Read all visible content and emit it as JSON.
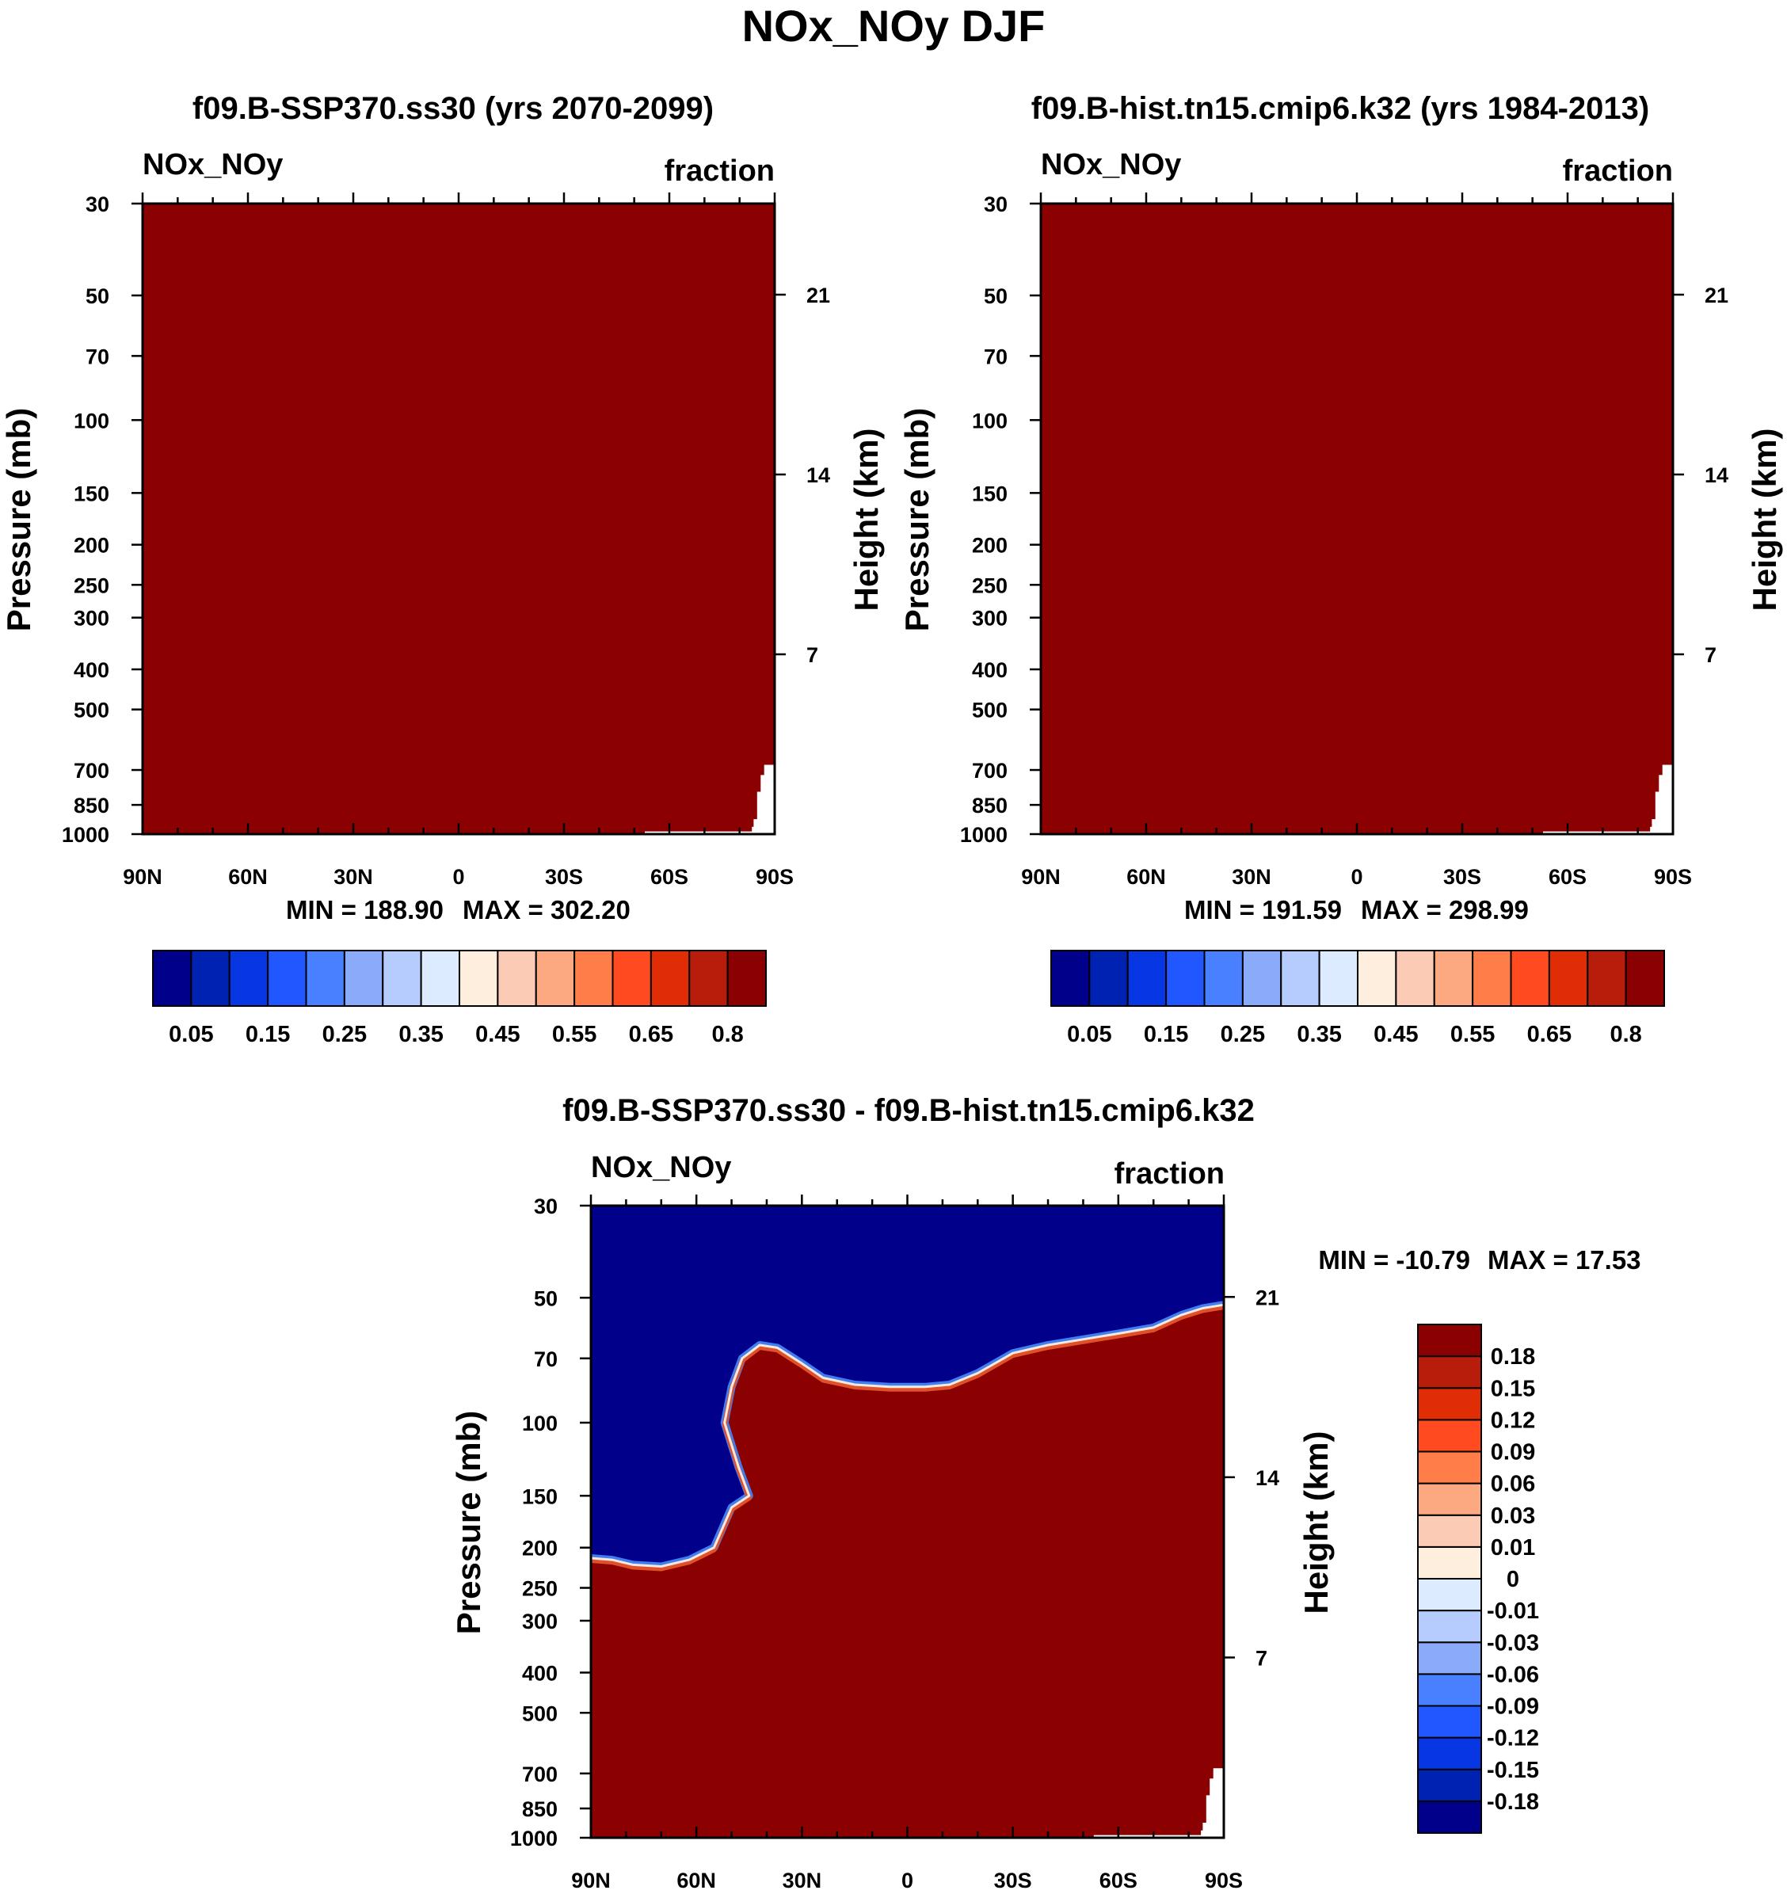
{
  "page_title": "NOx_NOy DJF",
  "colors": {
    "fill_max": "#8B0000",
    "diff_neg": "#00008B",
    "background": "#ffffff",
    "edge_highlight": "#f7e9db",
    "edge_blue": "#3f7df0",
    "edge_red": "#e0502a"
  },
  "chart_data": [
    {
      "id": "left",
      "type": "heatmap",
      "title": "f09.B-SSP370.ss30 (yrs 2070-2099)",
      "variable": "NOx_NOy",
      "units": "fraction",
      "xlabel": "",
      "ylabel": "Pressure (mb)",
      "ylabel_right": "Height (km)",
      "x_ticks": [
        "90N",
        "60N",
        "30N",
        "0",
        "30S",
        "60S",
        "90S"
      ],
      "x_range": [
        90,
        -90
      ],
      "y_ticks": [
        30,
        50,
        70,
        100,
        150,
        200,
        250,
        300,
        400,
        500,
        700,
        850,
        1000
      ],
      "y_range": [
        30,
        1000
      ],
      "y_scale": "log",
      "height_ticks": [
        21,
        14,
        7
      ],
      "min_label": "MIN = 188.90",
      "max_label": "MAX = 302.20",
      "field": "uniform above top of colour scale (all 0.8+)",
      "colorbar": {
        "orientation": "horizontal",
        "colors": [
          "#00008B",
          "#0022B3",
          "#0736E3",
          "#2157FF",
          "#4980FF",
          "#8AABFA",
          "#B6CCFF",
          "#DCEBFF",
          "#FEEEDE",
          "#FCCBB5",
          "#FCA982",
          "#FF7D49",
          "#FF4B1F",
          "#E12D05",
          "#B81D0B",
          "#8B0000"
        ],
        "labels": [
          "0.05",
          "0.15",
          "0.25",
          "0.35",
          "0.45",
          "0.55",
          "0.65",
          "0.8"
        ]
      }
    },
    {
      "id": "right",
      "type": "heatmap",
      "title": "f09.B-hist.tn15.cmip6.k32 (yrs 1984-2013)",
      "variable": "NOx_NOy",
      "units": "fraction",
      "xlabel": "",
      "ylabel": "Pressure (mb)",
      "ylabel_right": "Height (km)",
      "x_ticks": [
        "90N",
        "60N",
        "30N",
        "0",
        "30S",
        "60S",
        "90S"
      ],
      "x_range": [
        90,
        -90
      ],
      "y_ticks": [
        30,
        50,
        70,
        100,
        150,
        200,
        250,
        300,
        400,
        500,
        700,
        850,
        1000
      ],
      "y_range": [
        30,
        1000
      ],
      "y_scale": "log",
      "height_ticks": [
        21,
        14,
        7
      ],
      "min_label": "MIN = 191.59",
      "max_label": "MAX = 298.99",
      "field": "uniform above top of colour scale (all 0.8+)",
      "colorbar": {
        "orientation": "horizontal",
        "colors": [
          "#00008B",
          "#0022B3",
          "#0736E3",
          "#2157FF",
          "#4980FF",
          "#8AABFA",
          "#B6CCFF",
          "#DCEBFF",
          "#FEEEDE",
          "#FCCBB5",
          "#FCA982",
          "#FF7D49",
          "#FF4B1F",
          "#E12D05",
          "#B81D0B",
          "#8B0000"
        ],
        "labels": [
          "0.05",
          "0.15",
          "0.25",
          "0.35",
          "0.45",
          "0.55",
          "0.65",
          "0.8"
        ]
      }
    },
    {
      "id": "diff",
      "type": "heatmap",
      "title": "f09.B-SSP370.ss30 - f09.B-hist.tn15.cmip6.k32",
      "variable": "NOx_NOy",
      "units": "fraction",
      "xlabel": "",
      "ylabel": "Pressure (mb)",
      "ylabel_right": "Height (km)",
      "x_ticks": [
        "90N",
        "60N",
        "30N",
        "0",
        "30S",
        "60S",
        "90S"
      ],
      "x_range": [
        90,
        -90
      ],
      "y_ticks": [
        30,
        50,
        70,
        100,
        150,
        200,
        250,
        300,
        400,
        500,
        700,
        850,
        1000
      ],
      "y_range": [
        30,
        1000
      ],
      "y_scale": "log",
      "height_ticks": [
        21,
        14,
        7
      ],
      "min_label": "MIN = -10.79",
      "max_label": "MAX =  17.53",
      "field": "negative (<-0.18) above boundary, positive (>0.18) below",
      "boundary": [
        {
          "lat": 90,
          "p": 212
        },
        {
          "lat": 84,
          "p": 214
        },
        {
          "lat": 78,
          "p": 220
        },
        {
          "lat": 70,
          "p": 222
        },
        {
          "lat": 62,
          "p": 214
        },
        {
          "lat": 55,
          "p": 200
        },
        {
          "lat": 50,
          "p": 160
        },
        {
          "lat": 45,
          "p": 150
        },
        {
          "lat": 48,
          "p": 128
        },
        {
          "lat": 52,
          "p": 100
        },
        {
          "lat": 50,
          "p": 82
        },
        {
          "lat": 47,
          "p": 70
        },
        {
          "lat": 42,
          "p": 65
        },
        {
          "lat": 37,
          "p": 66
        },
        {
          "lat": 30,
          "p": 72
        },
        {
          "lat": 24,
          "p": 78
        },
        {
          "lat": 15,
          "p": 81
        },
        {
          "lat": 5,
          "p": 82
        },
        {
          "lat": -5,
          "p": 82
        },
        {
          "lat": -12,
          "p": 81
        },
        {
          "lat": -20,
          "p": 76
        },
        {
          "lat": -30,
          "p": 68
        },
        {
          "lat": -40,
          "p": 65
        },
        {
          "lat": -50,
          "p": 63
        },
        {
          "lat": -60,
          "p": 61
        },
        {
          "lat": -70,
          "p": 59
        },
        {
          "lat": -78,
          "p": 55
        },
        {
          "lat": -84,
          "p": 53
        },
        {
          "lat": -90,
          "p": 52
        }
      ],
      "colorbar": {
        "orientation": "vertical",
        "colors": [
          "#00008B",
          "#0022B3",
          "#0736E3",
          "#2157FF",
          "#4980FF",
          "#8AABFA",
          "#B6CCFF",
          "#DCEBFF",
          "#FEEEDE",
          "#FCCBB5",
          "#FCA982",
          "#FF7D49",
          "#FF4B1F",
          "#E12D05",
          "#B81D0B",
          "#8B0000"
        ],
        "labels": [
          "0.18",
          "0.15",
          "0.12",
          "0.09",
          "0.06",
          "0.03",
          "0.01",
          "0",
          "-0.01",
          "-0.03",
          "-0.06",
          "-0.09",
          "-0.12",
          "-0.15",
          "-0.18"
        ]
      }
    }
  ]
}
